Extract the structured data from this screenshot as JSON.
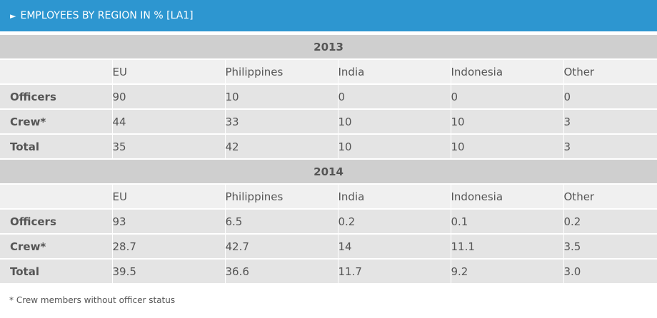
{
  "header": {
    "title": "EMPLOYEES BY REGION  IN % [LA1]",
    "icon": "triangle-right-icon"
  },
  "columns": [
    "EU",
    "Philippines",
    "India",
    "Indonesia",
    "Other"
  ],
  "sections": [
    {
      "year": "2013",
      "rows": [
        {
          "label": "Officers",
          "values": [
            "90",
            "10",
            "0",
            "0",
            "0"
          ]
        },
        {
          "label": "Crew*",
          "values": [
            "44",
            "33",
            "10",
            "10",
            "3"
          ]
        },
        {
          "label": "Total",
          "values": [
            "35",
            "42",
            "10",
            "10",
            "3"
          ]
        }
      ]
    },
    {
      "year": "2014",
      "rows": [
        {
          "label": "Officers",
          "values": [
            "93",
            "6.5",
            "0.2",
            "0.1",
            "0.2"
          ]
        },
        {
          "label": "Crew*",
          "values": [
            "28.7",
            "42.7",
            "14",
            "11.1",
            "3.5"
          ]
        },
        {
          "label": "Total",
          "values": [
            "39.5",
            "36.6",
            "11.7",
            "9.2",
            "3.0"
          ]
        }
      ]
    }
  ],
  "footnote": "* Crew members without officer status",
  "colors": {
    "header": "#2d96d0",
    "year_band": "#cfcfcf",
    "row": "#e4e4e4",
    "column_head": "#f0f0f0"
  }
}
